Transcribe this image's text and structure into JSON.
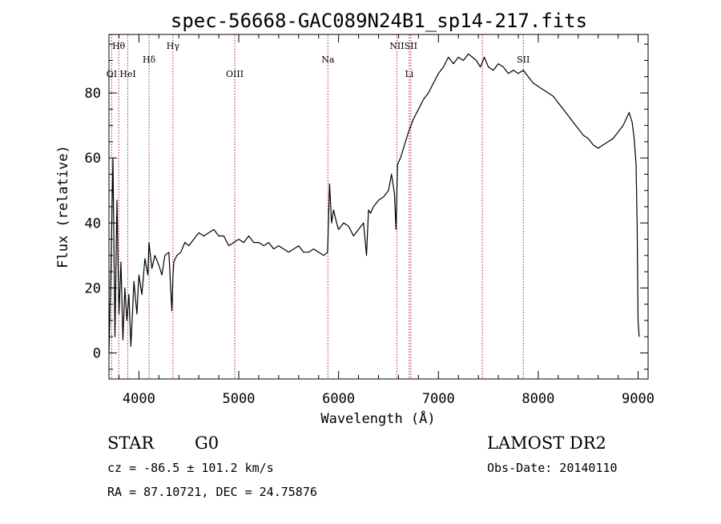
{
  "chart_data": {
    "type": "line",
    "title": "spec-56668-GAC089N24B1_sp14-217.fits",
    "xlabel": "Wavelength (Å)",
    "ylabel": "Flux (relative)",
    "xlim": [
      3700,
      9100
    ],
    "ylim": [
      -8,
      98
    ],
    "xticks": [
      4000,
      5000,
      6000,
      7000,
      8000,
      9000
    ],
    "yticks": [
      0,
      20,
      40,
      60,
      80
    ],
    "grid": false,
    "series": [
      {
        "x": [
          3700,
          3720,
          3740,
          3760,
          3780,
          3800,
          3820,
          3840,
          3860,
          3880,
          3900,
          3920,
          3950,
          3980,
          4000,
          4030,
          4060,
          4090,
          4100,
          4130,
          4160,
          4200,
          4230,
          4260,
          4300,
          4330,
          4340,
          4350,
          4380,
          4420,
          4460,
          4500,
          4550,
          4600,
          4650,
          4700,
          4750,
          4800,
          4850,
          4900,
          4950,
          5000,
          5050,
          5100,
          5150,
          5200,
          5250,
          5300,
          5350,
          5400,
          5450,
          5500,
          5550,
          5600,
          5650,
          5700,
          5750,
          5800,
          5850,
          5890,
          5910,
          5930,
          5950,
          5980,
          6000,
          6050,
          6100,
          6150,
          6200,
          6250,
          6280,
          6300,
          6320,
          6350,
          6400,
          6450,
          6500,
          6530,
          6560,
          6575,
          6590,
          6620,
          6650,
          6700,
          6750,
          6800,
          6850,
          6900,
          6950,
          7000,
          7050,
          7100,
          7150,
          7200,
          7250,
          7300,
          7340,
          7380,
          7420,
          7460,
          7500,
          7550,
          7600,
          7650,
          7700,
          7750,
          7800,
          7850,
          7900,
          7950,
          8000,
          8050,
          8100,
          8150,
          8200,
          8250,
          8300,
          8350,
          8400,
          8450,
          8500,
          8550,
          8600,
          8650,
          8700,
          8750,
          8800,
          8850,
          8880,
          8910,
          8940,
          8960,
          8980,
          8990,
          9000,
          9010
        ],
        "y": [
          0,
          26,
          60,
          5,
          47,
          12,
          28,
          4,
          20,
          10,
          18,
          2,
          22,
          12,
          24,
          18,
          29,
          24,
          34,
          26,
          30,
          27,
          24,
          30,
          31,
          13,
          23,
          28,
          30,
          31,
          34,
          33,
          35,
          37,
          36,
          37,
          38,
          36,
          36,
          33,
          34,
          35,
          34,
          36,
          34,
          34,
          33,
          34,
          32,
          33,
          32,
          31,
          32,
          33,
          31,
          31,
          32,
          31,
          30,
          31,
          52,
          40,
          44,
          40,
          38,
          40,
          39,
          36,
          38,
          40,
          30,
          44,
          43,
          45,
          47,
          48,
          50,
          55,
          49,
          38,
          58,
          60,
          63,
          68,
          72,
          75,
          78,
          80,
          83,
          86,
          88,
          91,
          89,
          91,
          90,
          92,
          91,
          90,
          88,
          91,
          88,
          87,
          89,
          88,
          86,
          87,
          86,
          87,
          85,
          83,
          82,
          81,
          80,
          79,
          77,
          75,
          73,
          71,
          69,
          67,
          66,
          64,
          63,
          64,
          65,
          66,
          68,
          70,
          72,
          74,
          71,
          66,
          58,
          40,
          10,
          5
        ],
        "color": "#000000"
      }
    ],
    "line_markers": [
      {
        "label": "OI",
        "x": 3727,
        "row": "low"
      },
      {
        "label": "Hθ",
        "x": 3798,
        "row": "high"
      },
      {
        "label": "HeI",
        "x": 3889,
        "row": "low"
      },
      {
        "label": "Hδ",
        "x": 4102,
        "row": "mid"
      },
      {
        "label": "Hγ",
        "x": 4341,
        "row": "high"
      },
      {
        "label": "OIII",
        "x": 4960,
        "row": "low"
      },
      {
        "label": "Na",
        "x": 5893,
        "row": "mid"
      },
      {
        "label": "NII",
        "x": 6584,
        "row": "high"
      },
      {
        "label": "Li",
        "x": 6708,
        "row": "low"
      },
      {
        "label": "SII",
        "x": 6724,
        "row": "high"
      },
      {
        "label": "",
        "x": 7440,
        "row": "mid"
      },
      {
        "label": "SII",
        "x": 7850,
        "row": "mid"
      }
    ]
  },
  "footer": {
    "object_class": "STAR",
    "subclass": "G0",
    "survey": "LAMOST DR2",
    "redshift": "cz = -86.5 ± 101.2 km/s",
    "obs_date": "Obs-Date: 20140110",
    "coords": "RA =  87.10721, DEC =  24.75876"
  },
  "colors": {
    "spectrum": "#000000",
    "line_marker": "#b22222"
  }
}
